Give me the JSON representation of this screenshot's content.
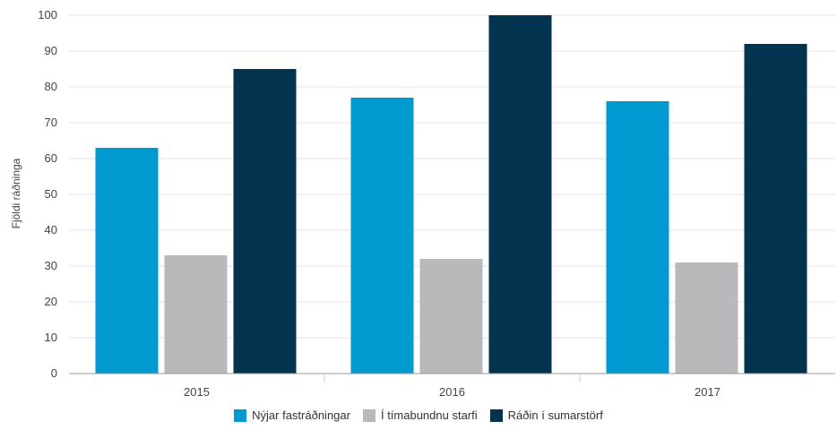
{
  "chart_data": {
    "type": "bar",
    "categories": [
      "2015",
      "2016",
      "2017"
    ],
    "series": [
      {
        "name": "Nýjar fastráðningar",
        "values": [
          63,
          77,
          76
        ],
        "color": "#0099d0"
      },
      {
        "name": "Í tímabundnu starfi",
        "values": [
          33,
          32,
          31
        ],
        "color": "#b8b9bb"
      },
      {
        "name": "Ráðin í sumarstörf",
        "values": [
          85,
          100,
          92
        ],
        "color": "#02344f"
      }
    ],
    "title": "",
    "xlabel": "",
    "ylabel": "Fjöldi ráðninga",
    "ylim": [
      0,
      100
    ],
    "yticks": [
      0,
      10,
      20,
      30,
      40,
      50,
      60,
      70,
      80,
      90,
      100
    ],
    "grid": true,
    "legend_position": "bottom-center"
  }
}
